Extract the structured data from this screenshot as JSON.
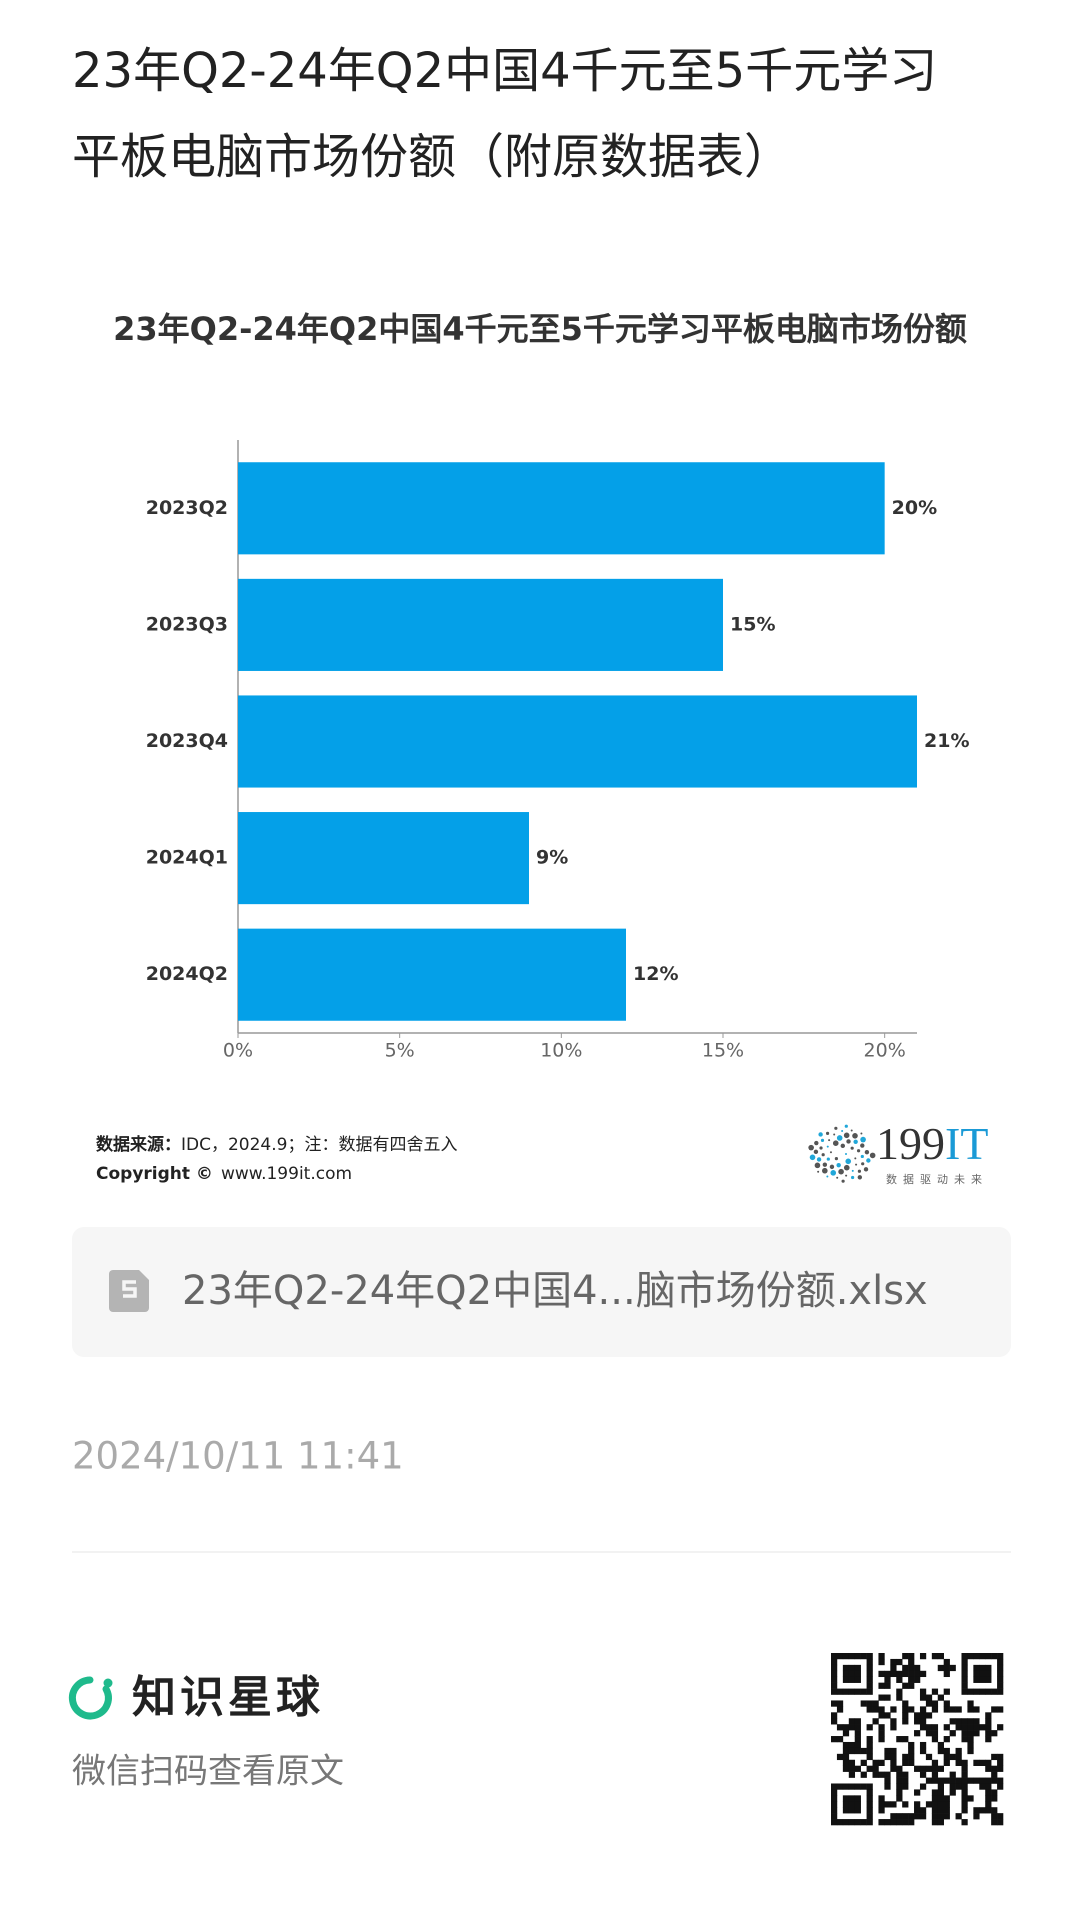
{
  "page_title": [
    "23年Q2-24年Q2中国4千元至5千元学习",
    "平板电脑市场份额（附原数据表）"
  ],
  "chart_data": {
    "type": "hbar",
    "title": "23年Q2-24年Q2中国4千元至5千元学习平板电脑市场份额",
    "categories": [
      "2023Q2",
      "2023Q3",
      "2023Q4",
      "2024Q1",
      "2024Q2"
    ],
    "values": [
      20,
      15,
      21,
      9,
      12
    ],
    "value_labels": [
      "20%",
      "15%",
      "21%",
      "9%",
      "12%"
    ],
    "color": "#04a0e8",
    "xlim": [
      0,
      21
    ],
    "xticks": [
      {
        "value": 0,
        "label": "0%"
      },
      {
        "value": 5,
        "label": "5%"
      },
      {
        "value": 10,
        "label": "10%"
      },
      {
        "value": 15,
        "label": "15%"
      },
      {
        "value": 20,
        "label": "20%"
      }
    ]
  },
  "source": {
    "label": "数据来源：",
    "text": "IDC，2024.9；注：数据有四舍五入"
  },
  "copyright": {
    "label": "Copyright ©",
    "text": "www.199it.com"
  },
  "logo": {
    "num": "199",
    "it": "IT",
    "slogan": "数据驱动未来"
  },
  "file": {
    "name": "23年Q2-24年Q2中国4...脑市场份额.xlsx"
  },
  "date": "2024/10/11 11:41",
  "footer": {
    "brand": "知识星球",
    "hint": "微信扫码查看原文"
  }
}
